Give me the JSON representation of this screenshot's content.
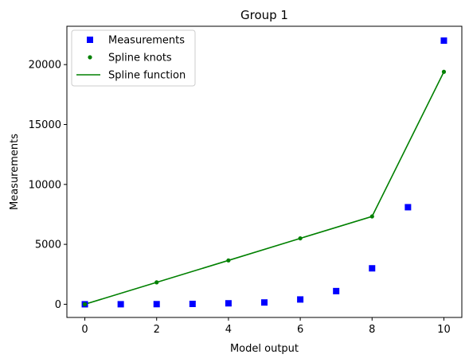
{
  "chart_data": {
    "type": "line",
    "title": "Group 1",
    "xlabel": "Model output",
    "ylabel": "Measurements",
    "xlim": [
      -0.5,
      10.5
    ],
    "ylim": [
      -1100,
      23200
    ],
    "xticks": [
      0,
      2,
      4,
      6,
      8,
      10
    ],
    "yticks": [
      0,
      5000,
      10000,
      15000,
      20000
    ],
    "grid": false,
    "legend_position": "top-left",
    "series": [
      {
        "name": "Measurements",
        "kind": "scatter",
        "marker": "square",
        "color": "#0000ff",
        "x": [
          0,
          1,
          2,
          3,
          4,
          5,
          6,
          7,
          8,
          9,
          10
        ],
        "y": [
          0,
          3,
          10,
          30,
          80,
          150,
          400,
          1100,
          3000,
          8100,
          22000
        ]
      },
      {
        "name": "Spline knots",
        "kind": "scatter",
        "marker": "dot",
        "color": "#008000",
        "x": [
          0,
          2,
          4,
          6,
          8,
          10
        ],
        "y": [
          0,
          1830,
          3660,
          5500,
          7330,
          19400
        ]
      },
      {
        "name": "Spline function",
        "kind": "line",
        "color": "#008000",
        "x": [
          0,
          2,
          4,
          6,
          8,
          10
        ],
        "y": [
          0,
          1830,
          3660,
          5500,
          7330,
          19400
        ]
      }
    ]
  }
}
